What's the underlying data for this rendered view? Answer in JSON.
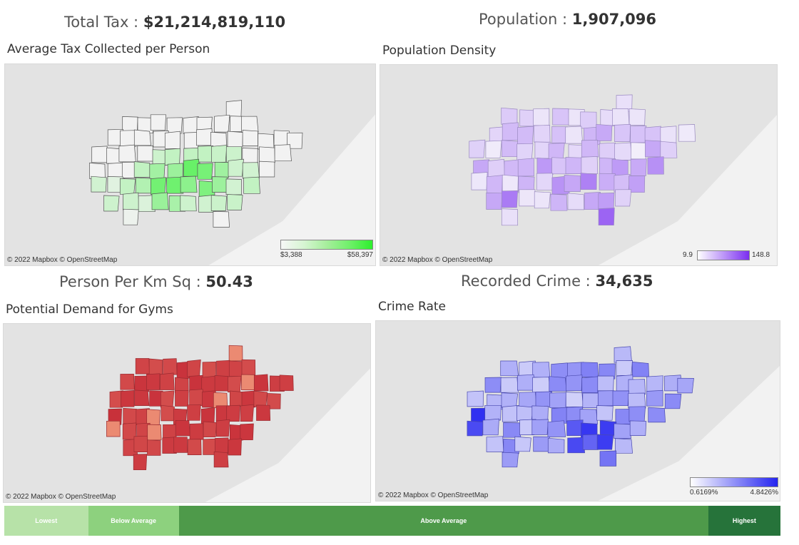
{
  "kpis": {
    "total_tax": {
      "label": "Total Tax :",
      "value": "$21,214,819,110"
    },
    "population": {
      "label": "Population :",
      "value": "1,907,096"
    },
    "person_per_km": {
      "label": "Person Per Km Sq :",
      "value": "50.43"
    },
    "recorded_crime": {
      "label": "Recorded Crime :",
      "value": "34,635"
    }
  },
  "maps": {
    "tax": {
      "title": "Average Tax Collected per Person",
      "attribution": "© 2022 Mapbox  © OpenStreetMap",
      "legend_min": "$3,388",
      "legend_max": "$58,397",
      "color_low": "#f2f2f2",
      "color_high": "#2df02d"
    },
    "density": {
      "title": "Population Density",
      "attribution": "© 2022 Mapbox  © OpenStreetMap",
      "legend_min": "9.9",
      "legend_max": "148.8",
      "color_low": "#f3f0fa",
      "color_high": "#7b2ff0"
    },
    "gyms": {
      "title": "Potential Demand for Gyms",
      "attribution": "© 2022 Mapbox  © OpenStreetMap",
      "color_low": "#f4a080",
      "color_high": "#c8303a"
    },
    "crime": {
      "title": "Crime Rate",
      "attribution": "© 2022 Mapbox  © OpenStreetMap",
      "legend_min": "0.6169%",
      "legend_max": "4.8426%",
      "color_low": "#f0f0fb",
      "color_high": "#2424f0"
    }
  },
  "category_legend": [
    {
      "label": "Lowest",
      "color": "#b7e2a8",
      "share": 0.108
    },
    {
      "label": "Below Average",
      "color": "#8dd17e",
      "share": 0.117
    },
    {
      "label": "Above Average",
      "color": "#4e9a4a",
      "share": 0.682
    },
    {
      "label": "Highest",
      "color": "#26733a",
      "share": 0.093
    }
  ]
}
